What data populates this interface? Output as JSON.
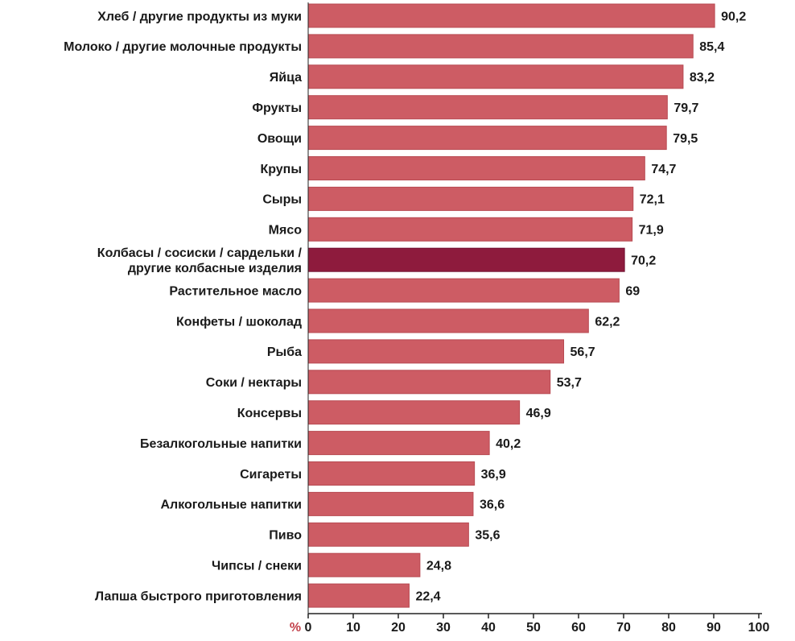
{
  "chart_data": {
    "type": "bar",
    "orientation": "horizontal",
    "unit_label": "%",
    "categories": [
      [
        "Хлеб / другие продукты из муки"
      ],
      [
        "Молоко / другие молочные продукты"
      ],
      [
        "Яйца"
      ],
      [
        "Фрукты"
      ],
      [
        "Овощи"
      ],
      [
        "Крупы"
      ],
      [
        "Сыры"
      ],
      [
        "Мясо"
      ],
      [
        "Колбасы / сосиски / сардельки /",
        "другие колбасные изделия"
      ],
      [
        "Растительное масло"
      ],
      [
        "Конфеты / шоколад"
      ],
      [
        "Рыба"
      ],
      [
        "Соки / нектары"
      ],
      [
        "Консервы"
      ],
      [
        "Безалкогольные напитки"
      ],
      [
        "Сигареты"
      ],
      [
        "Алкогольные напитки"
      ],
      [
        "Пиво"
      ],
      [
        "Чипсы / снеки"
      ],
      [
        "Лапша быстрого приготовления"
      ]
    ],
    "values": [
      90.2,
      85.4,
      83.2,
      79.7,
      79.5,
      74.7,
      72.1,
      71.9,
      70.2,
      69,
      62.2,
      56.7,
      53.7,
      46.9,
      40.2,
      36.9,
      36.6,
      35.6,
      24.8,
      22.4
    ],
    "value_labels": [
      "90,2",
      "85,4",
      "83,2",
      "79,7",
      "79,5",
      "74,7",
      "72,1",
      "71,9",
      "70,2",
      "69",
      "62,2",
      "56,7",
      "53,7",
      "46,9",
      "40,2",
      "36,9",
      "36,6",
      "35,6",
      "24,8",
      "22,4"
    ],
    "highlight_index": 8,
    "xlim": [
      0,
      100
    ],
    "x_ticks": [
      "0",
      "10",
      "20",
      "30",
      "40",
      "50",
      "60",
      "70",
      "80",
      "90",
      "100"
    ],
    "grid": false,
    "colors": {
      "bar": "#cd5c64",
      "bar_stroke": "#b84a52",
      "highlight": "#8e1b3d",
      "highlight_stroke": "#6e1030",
      "axis": "#222222",
      "unit": "#c2404a"
    }
  }
}
